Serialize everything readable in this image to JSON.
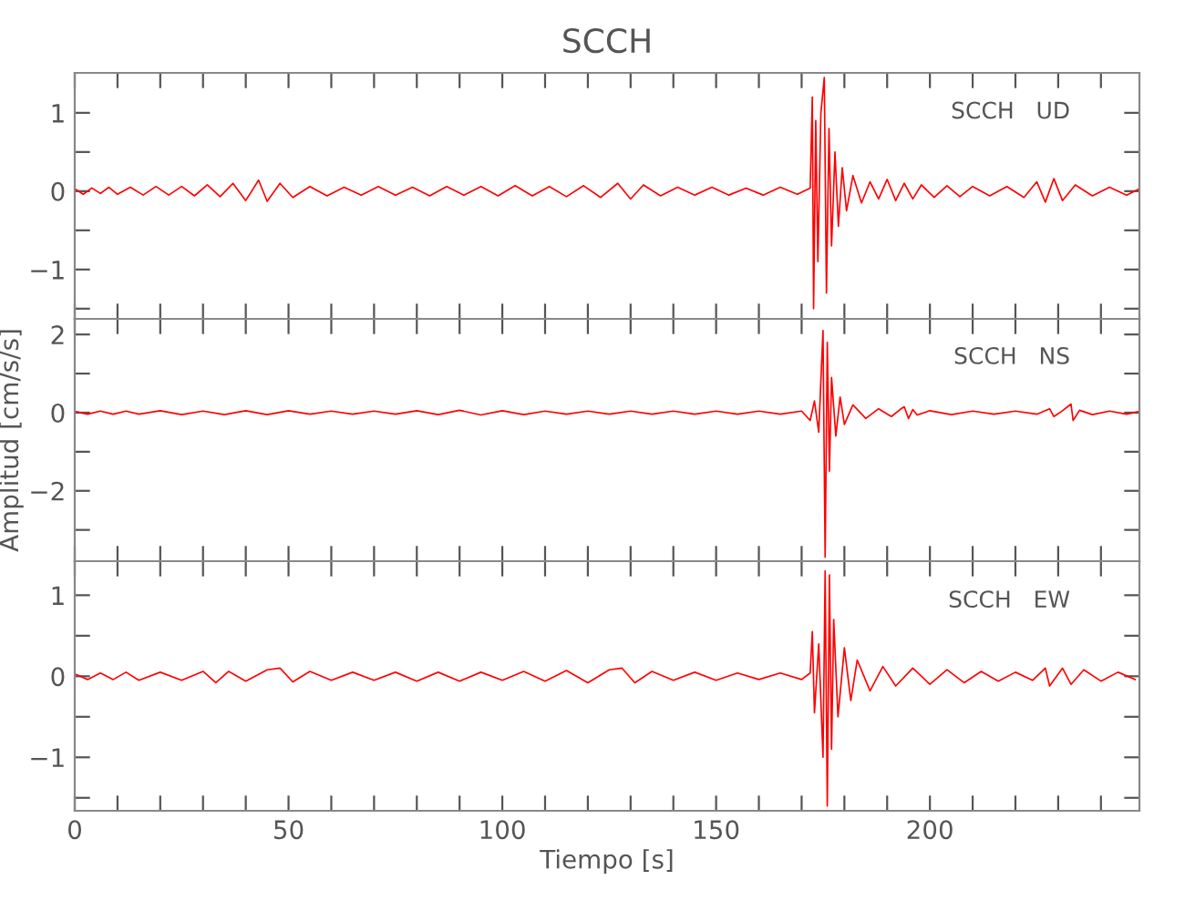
{
  "chart_data": [
    {
      "type": "line",
      "title": "SCCH",
      "annotations": [
        "SCCH   UD"
      ],
      "tick_labels": "y",
      "xlim": [
        0,
        249
      ],
      "ylim": [
        -1.63,
        1.51
      ],
      "xticks": [
        0,
        {
          "value": 10,
          "label": null
        },
        {
          "value": 20,
          "label": null
        },
        {
          "value": 30,
          "label": null
        },
        {
          "value": 40,
          "label": null
        },
        50,
        {
          "value": 60,
          "label": null
        },
        {
          "value": 70,
          "label": null
        },
        {
          "value": 80,
          "label": null
        },
        {
          "value": 90,
          "label": null
        },
        100,
        {
          "value": 110,
          "label": null
        },
        {
          "value": 120,
          "label": null
        },
        {
          "value": 130,
          "label": null
        },
        {
          "value": 140,
          "label": null
        },
        150,
        {
          "value": 160,
          "label": null
        },
        {
          "value": 170,
          "label": null
        },
        {
          "value": 180,
          "label": null
        },
        {
          "value": 190,
          "label": null
        },
        200,
        {
          "value": 210,
          "label": null
        },
        {
          "value": 220,
          "label": null
        },
        {
          "value": 230,
          "label": null
        },
        {
          "value": 240,
          "label": null
        }
      ],
      "yticks": [
        {
          "value": -1.5,
          "label": null
        },
        {
          "value": -1,
          "label": "−1"
        },
        {
          "value": -0.5,
          "label": null
        },
        0,
        {
          "value": 0.5,
          "label": null
        },
        1
      ],
      "series": [
        {
          "color": "#ff0000",
          "x": [
            0,
            2,
            4,
            6,
            8,
            10,
            13,
            16,
            19,
            22,
            25,
            28,
            31,
            34,
            37,
            40,
            43,
            45,
            48,
            51,
            55,
            59,
            63,
            67,
            71,
            75,
            79,
            83,
            87,
            91,
            95,
            99,
            103,
            107,
            111,
            115,
            119,
            123,
            127,
            130,
            133,
            137,
            141,
            145,
            149,
            153,
            157,
            161,
            165,
            169,
            172,
            172.5,
            172.8,
            173.3,
            173.8,
            174.5,
            175.3,
            175.8,
            176.4,
            177,
            177.8,
            178.6,
            179.5,
            180.5,
            182,
            184,
            186,
            188,
            190,
            192,
            194,
            196,
            198,
            201,
            204,
            207,
            210,
            214,
            218,
            222,
            225,
            227,
            229,
            231,
            234,
            238,
            242,
            246,
            249
          ],
          "values": [
            0.03,
            -0.04,
            0.04,
            -0.03,
            0.05,
            -0.04,
            0.05,
            -0.05,
            0.06,
            -0.05,
            0.06,
            -0.06,
            0.08,
            -0.07,
            0.1,
            -0.12,
            0.14,
            -0.13,
            0.1,
            -0.08,
            0.06,
            -0.06,
            0.05,
            -0.05,
            0.06,
            -0.05,
            0.05,
            -0.06,
            0.06,
            -0.05,
            0.06,
            -0.06,
            0.07,
            -0.06,
            0.06,
            -0.07,
            0.07,
            -0.08,
            0.1,
            -0.1,
            0.08,
            -0.06,
            0.05,
            -0.05,
            0.05,
            -0.05,
            0.04,
            -0.05,
            0.05,
            -0.04,
            0.04,
            1.2,
            -1.5,
            0.9,
            -0.9,
            1.0,
            1.45,
            -1.3,
            0.8,
            -0.7,
            0.5,
            -0.45,
            0.3,
            -0.25,
            0.2,
            -0.15,
            0.12,
            -0.1,
            0.15,
            -0.12,
            0.1,
            -0.1,
            0.08,
            -0.08,
            0.07,
            -0.07,
            0.06,
            -0.06,
            0.06,
            -0.08,
            0.12,
            -0.14,
            0.16,
            -0.12,
            0.08,
            -0.06,
            0.05,
            -0.05,
            0.03
          ]
        }
      ]
    },
    {
      "type": "line",
      "ylabel": "Amplitud [cm/s/s]",
      "annotations": [
        "SCCH   NS"
      ],
      "tick_labels": "y",
      "xlim": [
        0,
        249
      ],
      "ylim": [
        -3.8,
        2.4
      ],
      "xticks": [
        0,
        {
          "value": 10,
          "label": null
        },
        {
          "value": 20,
          "label": null
        },
        {
          "value": 30,
          "label": null
        },
        {
          "value": 40,
          "label": null
        },
        50,
        {
          "value": 60,
          "label": null
        },
        {
          "value": 70,
          "label": null
        },
        {
          "value": 80,
          "label": null
        },
        {
          "value": 90,
          "label": null
        },
        100,
        {
          "value": 110,
          "label": null
        },
        {
          "value": 120,
          "label": null
        },
        {
          "value": 130,
          "label": null
        },
        {
          "value": 140,
          "label": null
        },
        150,
        {
          "value": 160,
          "label": null
        },
        {
          "value": 170,
          "label": null
        },
        {
          "value": 180,
          "label": null
        },
        {
          "value": 190,
          "label": null
        },
        200,
        {
          "value": 210,
          "label": null
        },
        {
          "value": 220,
          "label": null
        },
        {
          "value": 230,
          "label": null
        },
        {
          "value": 240,
          "label": null
        }
      ],
      "yticks": [
        {
          "value": -3,
          "label": null
        },
        {
          "value": -2,
          "label": "−2"
        },
        {
          "value": -1,
          "label": null
        },
        0,
        {
          "value": 1,
          "label": null
        },
        2
      ],
      "series": [
        {
          "color": "#ff0000",
          "x": [
            0,
            3,
            6,
            9,
            12,
            15,
            20,
            25,
            30,
            35,
            40,
            45,
            50,
            55,
            60,
            65,
            70,
            75,
            80,
            85,
            90,
            95,
            100,
            105,
            110,
            115,
            120,
            125,
            130,
            135,
            140,
            145,
            150,
            155,
            160,
            165,
            170,
            172,
            173,
            174,
            175,
            175.5,
            176,
            176.5,
            177,
            178,
            179,
            180,
            182,
            185,
            188,
            191,
            193,
            194,
            195,
            196,
            197,
            200,
            205,
            210,
            215,
            220,
            225,
            228,
            229,
            231,
            233,
            233.5,
            235,
            238,
            242,
            246,
            249
          ],
          "values": [
            0.03,
            -0.04,
            0.04,
            -0.04,
            0.04,
            -0.04,
            0.05,
            -0.05,
            0.04,
            -0.05,
            0.05,
            -0.05,
            0.05,
            -0.04,
            0.04,
            -0.04,
            0.04,
            -0.04,
            0.05,
            -0.05,
            0.06,
            -0.06,
            0.05,
            -0.05,
            0.04,
            -0.04,
            0.04,
            -0.04,
            0.04,
            -0.04,
            0.04,
            -0.04,
            0.04,
            -0.04,
            0.04,
            -0.04,
            0.04,
            -0.2,
            0.3,
            -0.5,
            2.1,
            -3.7,
            1.8,
            -1.5,
            0.9,
            -0.6,
            0.4,
            -0.3,
            0.2,
            -0.15,
            0.1,
            -0.1,
            0.08,
            0.15,
            -0.15,
            0.08,
            -0.06,
            0.05,
            -0.05,
            0.04,
            -0.04,
            0.04,
            -0.04,
            0.1,
            -0.1,
            0.05,
            0.22,
            -0.2,
            0.06,
            -0.05,
            0.04,
            -0.04,
            0.03
          ]
        }
      ]
    },
    {
      "type": "line",
      "xlabel": "Tiempo [s]",
      "annotations": [
        "SCCH   EW"
      ],
      "xlim": [
        0,
        249
      ],
      "ylim": [
        -1.66,
        1.42
      ],
      "xticks": [
        0,
        {
          "value": 10,
          "label": null
        },
        {
          "value": 20,
          "label": null
        },
        {
          "value": 30,
          "label": null
        },
        {
          "value": 40,
          "label": null
        },
        50,
        {
          "value": 60,
          "label": null
        },
        {
          "value": 70,
          "label": null
        },
        {
          "value": 80,
          "label": null
        },
        {
          "value": 90,
          "label": null
        },
        100,
        {
          "value": 110,
          "label": null
        },
        {
          "value": 120,
          "label": null
        },
        {
          "value": 130,
          "label": null
        },
        {
          "value": 140,
          "label": null
        },
        150,
        {
          "value": 160,
          "label": null
        },
        {
          "value": 170,
          "label": null
        },
        {
          "value": 180,
          "label": null
        },
        {
          "value": 190,
          "label": null
        },
        200,
        {
          "value": 210,
          "label": null
        },
        {
          "value": 220,
          "label": null
        },
        {
          "value": 230,
          "label": null
        },
        {
          "value": 240,
          "label": null
        }
      ],
      "yticks": [
        {
          "value": -1.5,
          "label": null
        },
        {
          "value": -1,
          "label": "−1"
        },
        {
          "value": -0.5,
          "label": null
        },
        0,
        {
          "value": 0.5,
          "label": null
        },
        1
      ],
      "series": [
        {
          "color": "#ff0000",
          "x": [
            0,
            3,
            6,
            9,
            12,
            15,
            20,
            25,
            30,
            33,
            36,
            40,
            45,
            48,
            51,
            55,
            60,
            65,
            70,
            75,
            80,
            85,
            90,
            95,
            100,
            105,
            110,
            115,
            120,
            125,
            128,
            131,
            135,
            140,
            145,
            150,
            155,
            160,
            165,
            170,
            172,
            172.5,
            173,
            174,
            175,
            175.5,
            176,
            176.5,
            177,
            177.5,
            178.5,
            180,
            181.5,
            183,
            186,
            189,
            192,
            196,
            200,
            204,
            208,
            212,
            216,
            220,
            224,
            227,
            228,
            231,
            233,
            236,
            240,
            244,
            248
          ],
          "values": [
            0.03,
            -0.04,
            0.04,
            -0.04,
            0.05,
            -0.05,
            0.05,
            -0.05,
            0.06,
            -0.08,
            0.06,
            -0.06,
            0.08,
            0.1,
            -0.07,
            0.06,
            -0.05,
            0.05,
            -0.05,
            0.05,
            -0.06,
            0.05,
            -0.06,
            0.05,
            -0.05,
            0.06,
            -0.06,
            0.07,
            -0.08,
            0.08,
            0.1,
            -0.08,
            0.06,
            -0.05,
            0.05,
            -0.05,
            0.04,
            -0.04,
            0.04,
            -0.04,
            0.04,
            0.55,
            -0.45,
            0.4,
            -1.0,
            1.3,
            -1.6,
            1.25,
            -0.9,
            0.7,
            -0.5,
            0.35,
            -0.3,
            0.2,
            -0.18,
            0.12,
            -0.12,
            0.1,
            -0.1,
            0.08,
            -0.08,
            0.06,
            -0.06,
            0.05,
            -0.05,
            0.1,
            -0.12,
            0.1,
            -0.1,
            0.08,
            -0.06,
            0.05,
            -0.04
          ]
        }
      ]
    }
  ]
}
